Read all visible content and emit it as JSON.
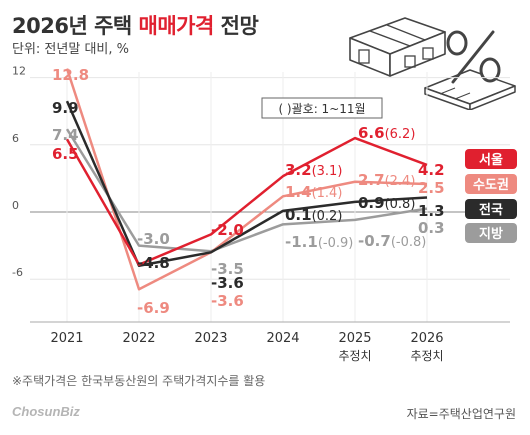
{
  "title": {
    "prefix": "2026년 주택 ",
    "accent": "매매가격",
    "suffix": " 전망"
  },
  "subtitle": "단위: 전년말 대비, %",
  "note": "※주택가격은 한국부동산원의 주택가격지수를 활용",
  "source": "자료=주택산업연구원",
  "logo": "ChosunBiz",
  "colors": {
    "seoul": "#e0202f",
    "metro": "#ee8a80",
    "national": "#2b2b2b",
    "local": "#9c9c9c",
    "title_accent": "#e0202f"
  },
  "chart_data": {
    "type": "line",
    "x": [
      "2021",
      "2022",
      "2023",
      "2024",
      "2025",
      "2026"
    ],
    "x_sub": [
      "",
      "",
      "",
      "",
      "추정치",
      "추정치"
    ],
    "ylim": [
      -10,
      14
    ],
    "yticks": [
      12,
      6,
      0,
      -6
    ],
    "annotation": "( )괄호: 1~11월",
    "series": [
      {
        "key": "seoul",
        "name": "서울",
        "values": [
          6.5,
          -4.7,
          -2.0,
          3.2,
          6.6,
          4.2
        ],
        "labels": [
          "6.5",
          "",
          "-2.0",
          "3.2",
          "6.6",
          "4.2"
        ],
        "paren": [
          "",
          "",
          "",
          "(3.1)",
          "(6.2)",
          ""
        ]
      },
      {
        "key": "metro",
        "name": "수도권",
        "values": [
          12.8,
          -6.9,
          -3.6,
          1.4,
          2.7,
          2.5
        ],
        "labels": [
          "12.8",
          "-6.9",
          "-3.6",
          "1.4",
          "2.7",
          "2.5"
        ],
        "paren": [
          "",
          "",
          "",
          "(1.4)",
          "(2.4)",
          ""
        ]
      },
      {
        "key": "national",
        "name": "전국",
        "values": [
          9.9,
          -4.8,
          -3.6,
          0.1,
          0.9,
          1.3
        ],
        "labels": [
          "9.9",
          "-4.8",
          "-3.6",
          "0.1",
          "0.9",
          "1.3"
        ],
        "paren": [
          "",
          "",
          "",
          "(0.2)",
          "(0.8)",
          ""
        ]
      },
      {
        "key": "local",
        "name": "지방",
        "values": [
          7.4,
          -3.0,
          -3.5,
          -1.1,
          -0.7,
          0.3
        ],
        "labels": [
          "7.4",
          "-3.0",
          "-3.5",
          "-1.1",
          "-0.7",
          "0.3"
        ],
        "paren": [
          "",
          "",
          "",
          "(-0.9)",
          "(-0.8)",
          ""
        ]
      }
    ]
  }
}
